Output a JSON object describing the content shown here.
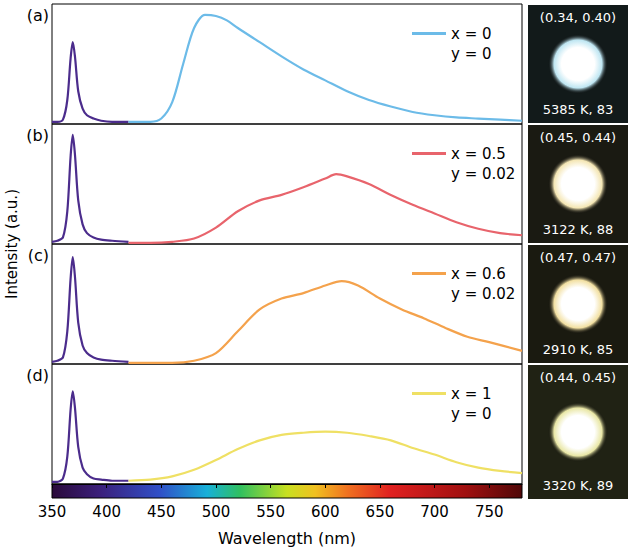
{
  "chart_data": {
    "type": "line",
    "xlabel": "Wavelength (nm)",
    "ylabel": "Intensity (a.u.)",
    "xlim": [
      350,
      780
    ],
    "xticks": [
      350,
      400,
      450,
      500,
      550,
      600,
      650,
      700,
      750
    ],
    "ylim": [
      0,
      1.1
    ],
    "tick_labels": "x",
    "grid": false,
    "legend": "upper right",
    "panels": [
      {
        "title": "(a)",
        "series": [
          {
            "color": "#4b2c8c",
            "x": [
              350,
              355,
              360,
              364,
              367,
              369,
              371,
              374,
              378,
              382,
              388,
              395,
              405,
              420
            ],
            "values": [
              0.02,
              0.02,
              0.04,
              0.22,
              0.6,
              0.75,
              0.62,
              0.3,
              0.14,
              0.08,
              0.05,
              0.03,
              0.02,
              0.02
            ]
          },
          {
            "name": "x = 0",
            "color": "#6cbbe8",
            "x": [
              420,
              440,
              450,
              460,
              470,
              480,
              490,
              500,
              510,
              520,
              540,
              560,
              580,
              600,
              620,
              640,
              660,
              680,
              700,
              720,
              740,
              760,
              780
            ],
            "values": [
              0.02,
              0.02,
              0.05,
              0.2,
              0.55,
              0.88,
              1.0,
              0.99,
              0.95,
              0.88,
              0.75,
              0.62,
              0.5,
              0.4,
              0.3,
              0.22,
              0.16,
              0.11,
              0.08,
              0.06,
              0.05,
              0.04,
              0.03
            ]
          }
        ],
        "annotations": [
          "y = 0"
        ],
        "photo": {
          "coordinates": "(0.34, 0.40)",
          "caption": "5385 K, 83"
        }
      },
      {
        "title": "(b)",
        "series": [
          {
            "color": "#4b2c8c",
            "x": [
              350,
              355,
              360,
              364,
              367,
              369,
              371,
              374,
              378,
              382,
              388,
              395,
              405,
              420
            ],
            "values": [
              0.02,
              0.03,
              0.06,
              0.3,
              0.8,
              1.0,
              0.82,
              0.4,
              0.18,
              0.1,
              0.06,
              0.04,
              0.03,
              0.02
            ]
          },
          {
            "name": "x = 0.5",
            "color": "#e8646c",
            "x": [
              420,
              440,
              460,
              480,
              500,
              520,
              540,
              560,
              580,
              600,
              610,
              620,
              640,
              660,
              680,
              700,
              720,
              740,
              760,
              780
            ],
            "values": [
              0.01,
              0.01,
              0.02,
              0.05,
              0.15,
              0.3,
              0.4,
              0.45,
              0.52,
              0.6,
              0.64,
              0.62,
              0.55,
              0.45,
              0.36,
              0.28,
              0.2,
              0.14,
              0.1,
              0.08
            ]
          }
        ],
        "annotations": [
          "y = 0.02"
        ],
        "photo": {
          "coordinates": "(0.45, 0.44)",
          "caption": "3122 K, 88"
        }
      },
      {
        "title": "(c)",
        "series": [
          {
            "color": "#4b2c8c",
            "x": [
              350,
              355,
              360,
              364,
              367,
              369,
              371,
              374,
              378,
              382,
              388,
              395,
              405,
              420
            ],
            "values": [
              0.02,
              0.03,
              0.06,
              0.3,
              0.78,
              0.98,
              0.8,
              0.38,
              0.17,
              0.1,
              0.06,
              0.04,
              0.03,
              0.02
            ]
          },
          {
            "name": "x = 0.6",
            "color": "#f4a24c",
            "x": [
              420,
              460,
              480,
              500,
              520,
              540,
              560,
              580,
              600,
              615,
              630,
              650,
              670,
              690,
              710,
              730,
              750,
              780
            ],
            "values": [
              0.01,
              0.01,
              0.03,
              0.1,
              0.3,
              0.5,
              0.6,
              0.65,
              0.72,
              0.76,
              0.72,
              0.6,
              0.5,
              0.42,
              0.33,
              0.25,
              0.2,
              0.12
            ]
          }
        ],
        "annotations": [
          "y = 0.02"
        ],
        "photo": {
          "coordinates": "(0.47, 0.47)",
          "caption": "2910 K, 85"
        }
      },
      {
        "title": "(d)",
        "series": [
          {
            "color": "#4b2c8c",
            "x": [
              350,
              355,
              360,
              364,
              367,
              369,
              371,
              374,
              378,
              382,
              388,
              395,
              405,
              420
            ],
            "values": [
              0.02,
              0.02,
              0.05,
              0.25,
              0.68,
              0.85,
              0.7,
              0.34,
              0.15,
              0.09,
              0.05,
              0.04,
              0.03,
              0.03
            ]
          },
          {
            "name": "x = 1",
            "color": "#efe064",
            "x": [
              420,
              440,
              460,
              480,
              500,
              520,
              540,
              560,
              580,
              600,
              620,
              640,
              660,
              680,
              700,
              720,
              740,
              760,
              780
            ],
            "values": [
              0.03,
              0.04,
              0.07,
              0.13,
              0.22,
              0.32,
              0.4,
              0.45,
              0.47,
              0.48,
              0.47,
              0.44,
              0.4,
              0.33,
              0.27,
              0.2,
              0.15,
              0.12,
              0.1
            ]
          }
        ],
        "annotations": [
          "y = 0"
        ],
        "photo": {
          "coordinates": "(0.44, 0.45)",
          "caption": "3320 K, 89"
        }
      }
    ]
  }
}
